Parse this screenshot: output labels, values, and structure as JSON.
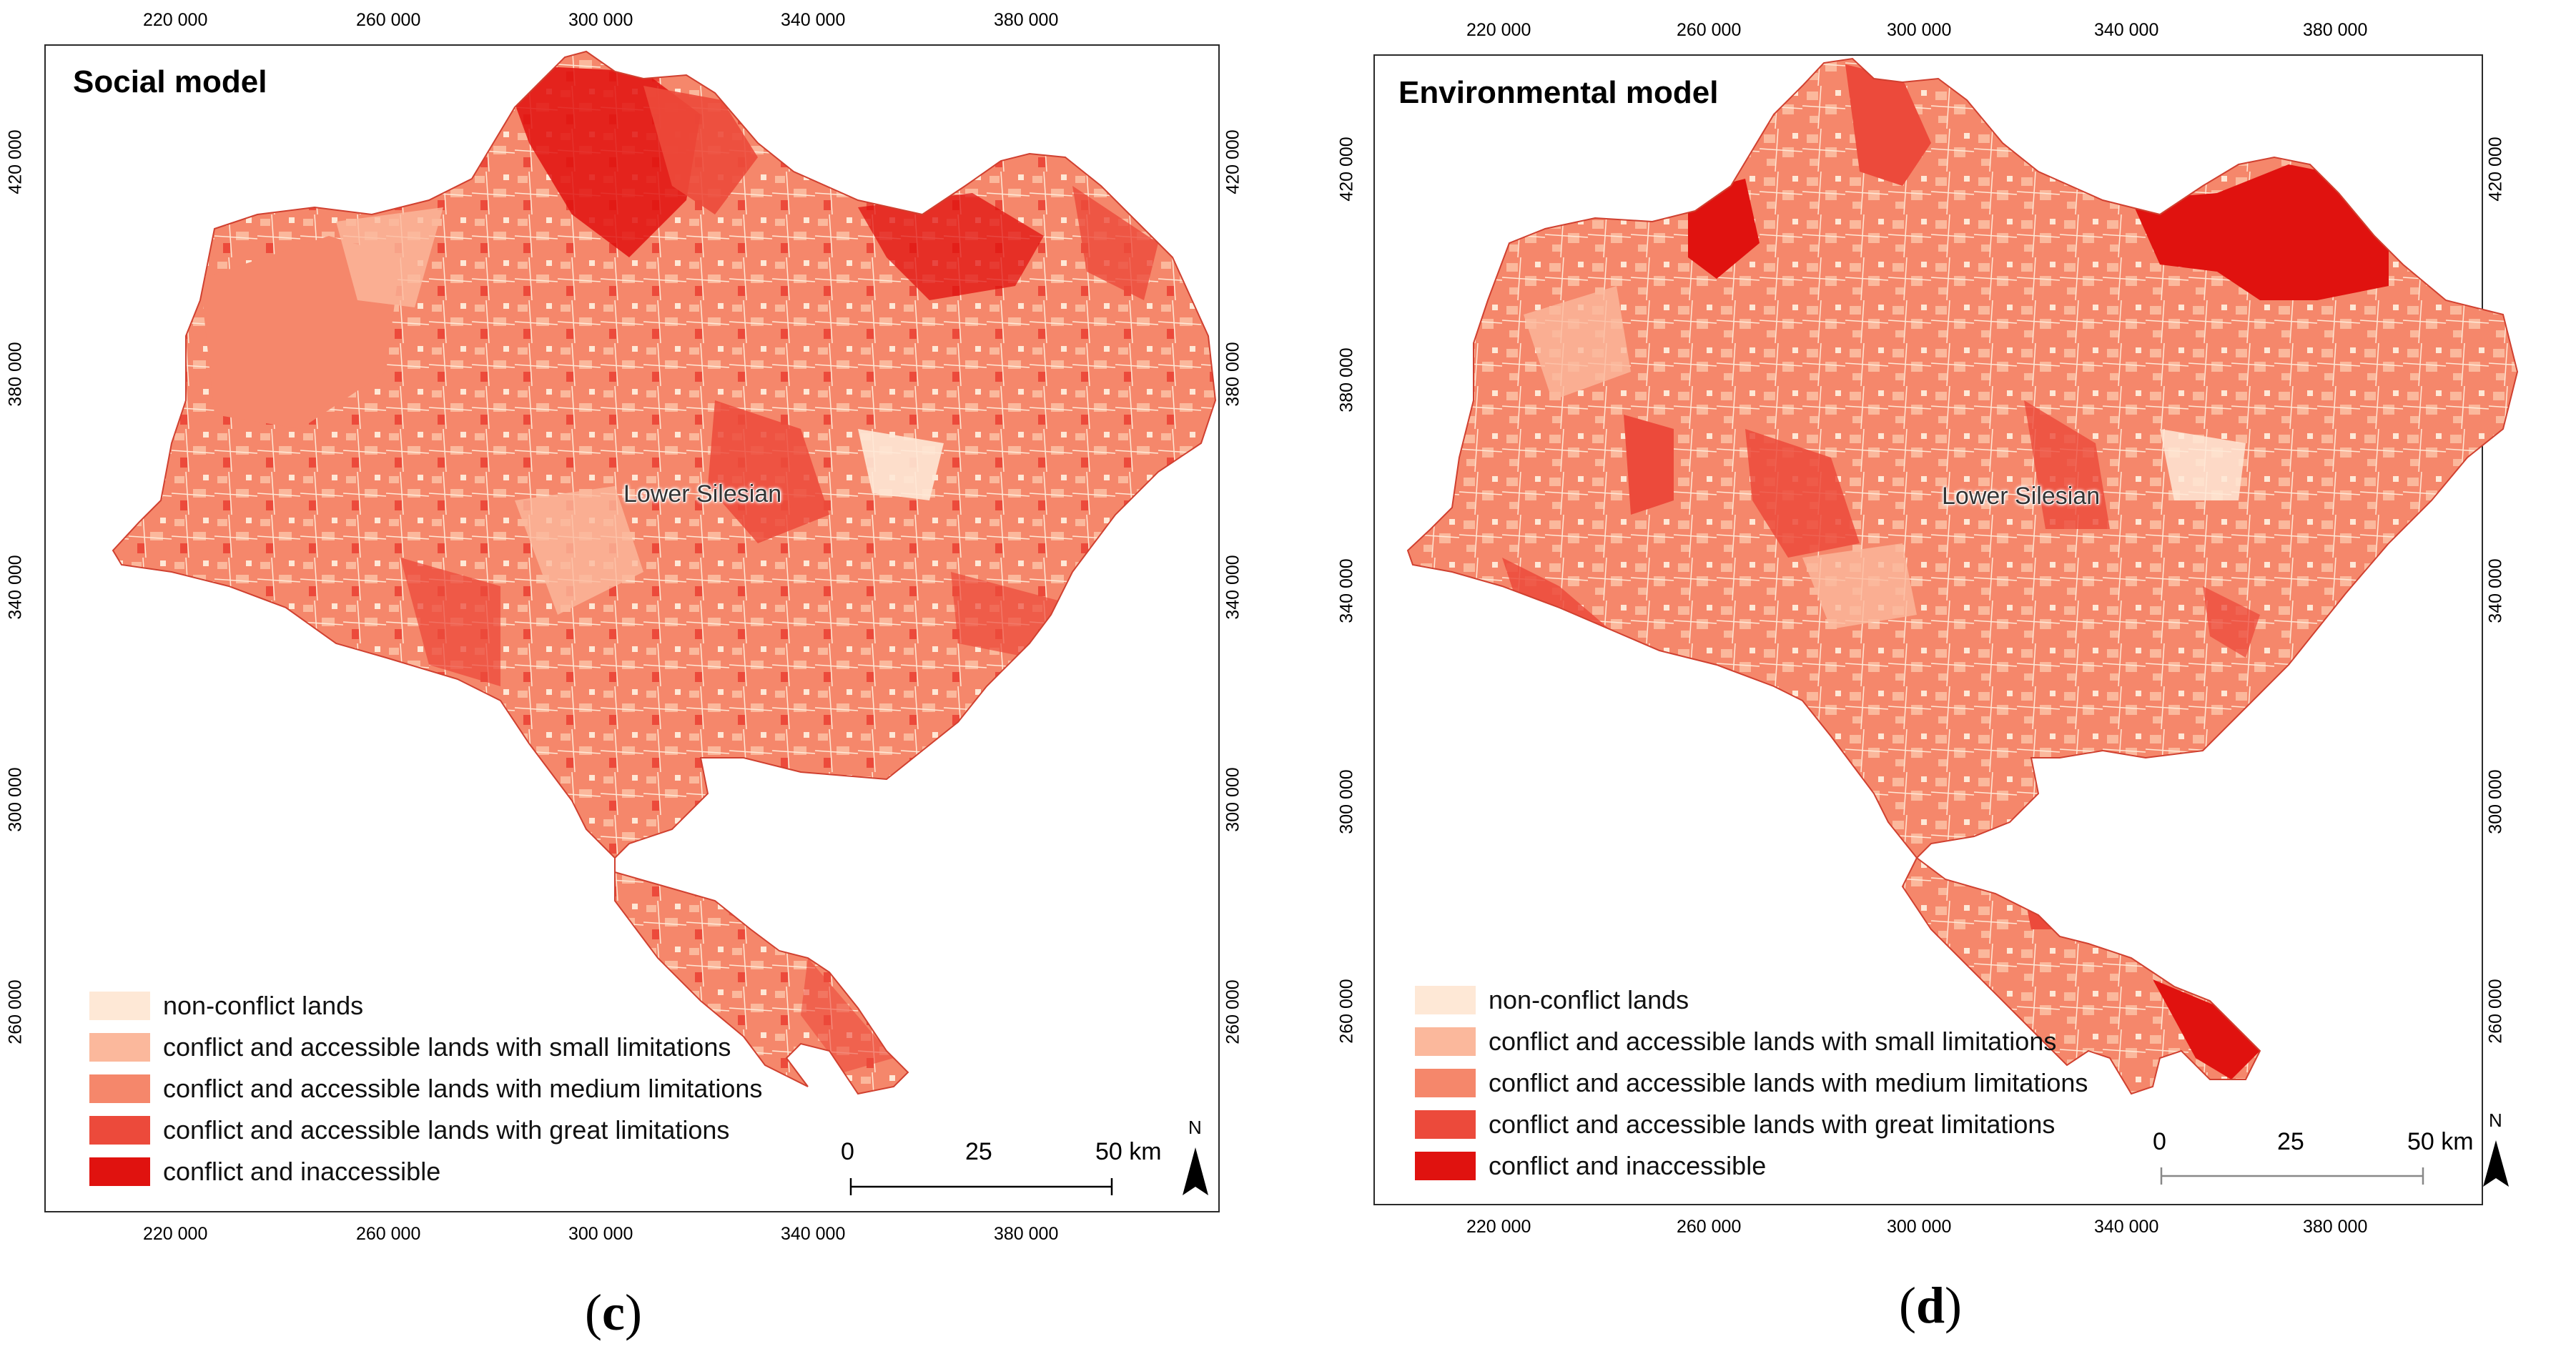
{
  "panels": [
    {
      "id": "c",
      "title": "Social model",
      "region_label": "Lower Silesian",
      "panel_letter_open": "(",
      "panel_letter": "c",
      "panel_letter_close": ")",
      "x_ticks": [
        "220 000",
        "260 000",
        "300 000",
        "340 000",
        "380 000"
      ],
      "y_ticks": [
        "420 000",
        "380 000",
        "340 000",
        "300 000",
        "260 000"
      ],
      "legend": [
        {
          "label": "non-conflict lands",
          "color": "#fee8d6"
        },
        {
          "label": "conflict and accessible lands with small limitations",
          "color": "#fbb89c"
        },
        {
          "label": "conflict and accessible lands with medium limitations",
          "color": "#f5876b"
        },
        {
          "label": "conflict and accessible lands with great limitations",
          "color": "#ec4a3b"
        },
        {
          "label": "conflict and inaccessible",
          "color": "#e0120f"
        }
      ],
      "scale": {
        "labels": [
          "0",
          "25",
          "50 km"
        ]
      },
      "north_label": "N"
    },
    {
      "id": "d",
      "title": "Environmental model",
      "region_label": "Lower Silesian",
      "panel_letter_open": "(",
      "panel_letter": "d",
      "panel_letter_close": ")",
      "x_ticks": [
        "220 000",
        "260 000",
        "300 000",
        "340 000",
        "380 000"
      ],
      "y_ticks": [
        "420 000",
        "380 000",
        "340 000",
        "300 000",
        "260 000"
      ],
      "legend": [
        {
          "label": "non-conflict lands",
          "color": "#fee8d6"
        },
        {
          "label": "conflict and accessible lands with small limitations",
          "color": "#fbb89c"
        },
        {
          "label": "conflict and accessible lands with medium limitations",
          "color": "#f5876b"
        },
        {
          "label": "conflict and accessible lands with great limitations",
          "color": "#ec4a3b"
        },
        {
          "label": "conflict and inaccessible",
          "color": "#e0120f"
        }
      ],
      "scale": {
        "labels": [
          "0",
          "25",
          "50 km"
        ]
      },
      "north_label": "N"
    }
  ]
}
